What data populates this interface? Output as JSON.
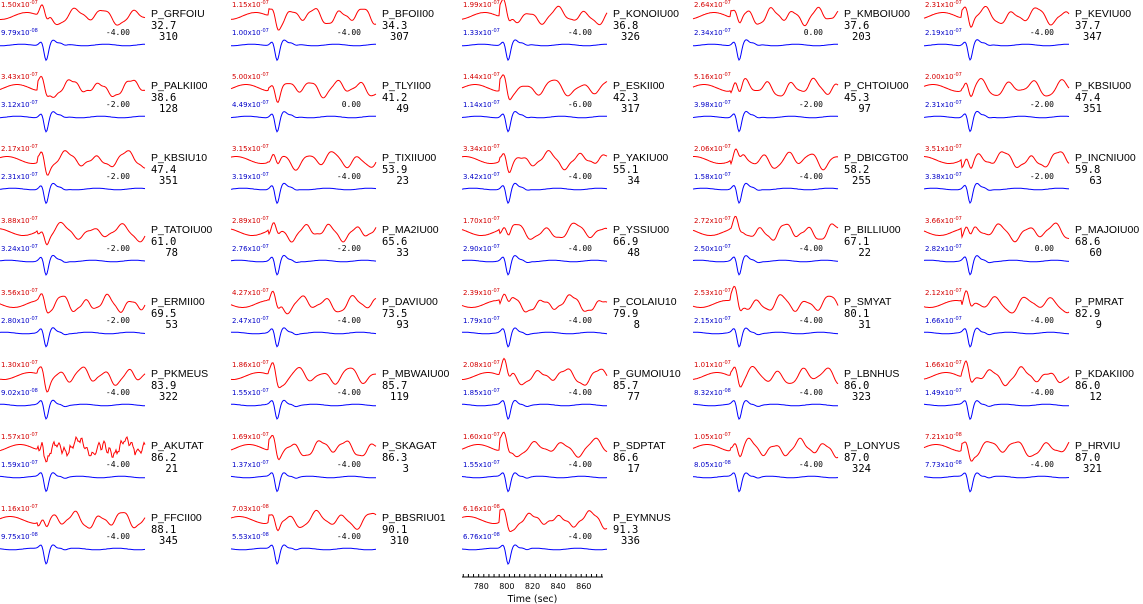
{
  "colors": {
    "data_trace": "#ff0000",
    "synthetic_trace": "#0000ff",
    "data_label": "#d40000",
    "synthetic_label": "#0000c8"
  },
  "chart_data": {
    "type": "line",
    "time_axis": {
      "label": "Time (sec)",
      "ticks": [
        "780",
        "800",
        "820",
        "840",
        "860"
      ],
      "range": [
        765,
        875
      ]
    },
    "panels": [
      {
        "station": "P_GRFOIU",
        "distance": "32.7",
        "azimuth": "310",
        "data_amp": "1.50x10",
        "data_exp": "-07",
        "syn_amp": "9.79x10",
        "syn_exp": "-08",
        "shift": "-4.00"
      },
      {
        "station": "P_BFOII00",
        "distance": "34.3",
        "azimuth": "307",
        "data_amp": "1.15x10",
        "data_exp": "-07",
        "syn_amp": "1.00x10",
        "syn_exp": "-07",
        "shift": "-4.00"
      },
      {
        "station": "P_KONOIU00",
        "distance": "36.8",
        "azimuth": "326",
        "data_amp": "1.99x10",
        "data_exp": "-07",
        "syn_amp": "1.33x10",
        "syn_exp": "-07",
        "shift": "-4.00"
      },
      {
        "station": "P_KMBOIU00",
        "distance": "37.6",
        "azimuth": "203",
        "data_amp": "2.64x10",
        "data_exp": "-07",
        "syn_amp": "2.34x10",
        "syn_exp": "-07",
        "shift": "0.00"
      },
      {
        "station": "P_KEVIU00",
        "distance": "37.7",
        "azimuth": "347",
        "data_amp": "2.31x10",
        "data_exp": "-07",
        "syn_amp": "2.19x10",
        "syn_exp": "-07",
        "shift": "-4.00"
      },
      {
        "station": "P_PALKII00",
        "distance": "38.6",
        "azimuth": "128",
        "data_amp": "3.43x10",
        "data_exp": "-07",
        "syn_amp": "3.12x10",
        "syn_exp": "-07",
        "shift": "-2.00"
      },
      {
        "station": "P_TLYII00",
        "distance": "41.2",
        "azimuth": "49",
        "data_amp": "5.00x10",
        "data_exp": "-07",
        "syn_amp": "4.49x10",
        "syn_exp": "-07",
        "shift": "0.00"
      },
      {
        "station": "P_ESKII00",
        "distance": "42.3",
        "azimuth": "317",
        "data_amp": "1.44x10",
        "data_exp": "-07",
        "syn_amp": "1.14x10",
        "syn_exp": "-07",
        "shift": "-6.00"
      },
      {
        "station": "P_CHTOIU00",
        "distance": "45.3",
        "azimuth": "97",
        "data_amp": "5.16x10",
        "data_exp": "-07",
        "syn_amp": "3.98x10",
        "syn_exp": "-07",
        "shift": "-2.00"
      },
      {
        "station": "P_KBSIU00",
        "distance": "47.4",
        "azimuth": "351",
        "data_amp": "2.00x10",
        "data_exp": "-07",
        "syn_amp": "2.31x10",
        "syn_exp": "-07",
        "shift": "-2.00"
      },
      {
        "station": "P_KBSIU10",
        "distance": "47.4",
        "azimuth": "351",
        "data_amp": "2.17x10",
        "data_exp": "-07",
        "syn_amp": "2.31x10",
        "syn_exp": "-07",
        "shift": "-2.00"
      },
      {
        "station": "P_TIXIIU00",
        "distance": "53.9",
        "azimuth": "23",
        "data_amp": "3.15x10",
        "data_exp": "-07",
        "syn_amp": "3.19x10",
        "syn_exp": "-07",
        "shift": "-4.00"
      },
      {
        "station": "P_YAKIU00",
        "distance": "55.1",
        "azimuth": "34",
        "data_amp": "3.34x10",
        "data_exp": "-07",
        "syn_amp": "3.42x10",
        "syn_exp": "-07",
        "shift": "-4.00"
      },
      {
        "station": "P_DBICGT00",
        "distance": "58.2",
        "azimuth": "255",
        "data_amp": "2.06x10",
        "data_exp": "-07",
        "syn_amp": "1.58x10",
        "syn_exp": "-07",
        "shift": "-4.00"
      },
      {
        "station": "P_INCNIU00",
        "distance": "59.8",
        "azimuth": "63",
        "data_amp": "3.51x10",
        "data_exp": "-07",
        "syn_amp": "3.38x10",
        "syn_exp": "-07",
        "shift": "-2.00"
      },
      {
        "station": "P_TATOIU00",
        "distance": "61.0",
        "azimuth": "78",
        "data_amp": "3.88x10",
        "data_exp": "-07",
        "syn_amp": "3.24x10",
        "syn_exp": "-07",
        "shift": "-2.00"
      },
      {
        "station": "P_MA2IU00",
        "distance": "65.6",
        "azimuth": "33",
        "data_amp": "2.89x10",
        "data_exp": "-07",
        "syn_amp": "2.76x10",
        "syn_exp": "-07",
        "shift": "-2.00"
      },
      {
        "station": "P_YSSIU00",
        "distance": "66.9",
        "azimuth": "48",
        "data_amp": "1.70x10",
        "data_exp": "-07",
        "syn_amp": "2.90x10",
        "syn_exp": "-07",
        "shift": "-4.00"
      },
      {
        "station": "P_BILLIU00",
        "distance": "67.1",
        "azimuth": "22",
        "data_amp": "2.72x10",
        "data_exp": "-07",
        "syn_amp": "2.50x10",
        "syn_exp": "-07",
        "shift": "-4.00"
      },
      {
        "station": "P_MAJOIU00",
        "distance": "68.6",
        "azimuth": "60",
        "data_amp": "3.66x10",
        "data_exp": "-07",
        "syn_amp": "2.82x10",
        "syn_exp": "-07",
        "shift": "0.00"
      },
      {
        "station": "P_ERMII00",
        "distance": "69.5",
        "azimuth": "53",
        "data_amp": "3.56x10",
        "data_exp": "-07",
        "syn_amp": "2.80x10",
        "syn_exp": "-07",
        "shift": "-2.00"
      },
      {
        "station": "P_DAVIU00",
        "distance": "73.5",
        "azimuth": "93",
        "data_amp": "4.27x10",
        "data_exp": "-07",
        "syn_amp": "2.47x10",
        "syn_exp": "-07",
        "shift": "-4.00"
      },
      {
        "station": "P_COLAIU10",
        "distance": "79.9",
        "azimuth": "8",
        "data_amp": "2.39x10",
        "data_exp": "-07",
        "syn_amp": "1.79x10",
        "syn_exp": "-07",
        "shift": "-4.00"
      },
      {
        "station": "P_SMYAT",
        "distance": "80.1",
        "azimuth": "31",
        "data_amp": "2.53x10",
        "data_exp": "-07",
        "syn_amp": "2.15x10",
        "syn_exp": "-07",
        "shift": "-4.00"
      },
      {
        "station": "P_PMRAT",
        "distance": "82.9",
        "azimuth": "9",
        "data_amp": "2.12x10",
        "data_exp": "-07",
        "syn_amp": "1.66x10",
        "syn_exp": "-07",
        "shift": "-4.00"
      },
      {
        "station": "P_PKMEUS",
        "distance": "83.9",
        "azimuth": "322",
        "data_amp": "1.30x10",
        "data_exp": "-07",
        "syn_amp": "9.02x10",
        "syn_exp": "-08",
        "shift": "-4.00"
      },
      {
        "station": "P_MBWAIU00",
        "distance": "85.7",
        "azimuth": "119",
        "data_amp": "1.86x10",
        "data_exp": "-07",
        "syn_amp": "1.55x10",
        "syn_exp": "-07",
        "shift": "-4.00"
      },
      {
        "station": "P_GUMOIU10",
        "distance": "85.7",
        "azimuth": "77",
        "data_amp": "2.08x10",
        "data_exp": "-07",
        "syn_amp": "1.85x10",
        "syn_exp": "-07",
        "shift": "-4.00"
      },
      {
        "station": "P_LBNHUS",
        "distance": "86.0",
        "azimuth": "323",
        "data_amp": "1.01x10",
        "data_exp": "-07",
        "syn_amp": "8.32x10",
        "syn_exp": "-08",
        "shift": "-4.00"
      },
      {
        "station": "P_KDAKII00",
        "distance": "86.0",
        "azimuth": "12",
        "data_amp": "1.66x10",
        "data_exp": "-07",
        "syn_amp": "1.49x10",
        "syn_exp": "-07",
        "shift": "-4.00"
      },
      {
        "station": "P_AKUTAT",
        "distance": "86.2",
        "azimuth": "21",
        "data_amp": "1.57x10",
        "data_exp": "-07",
        "syn_amp": "1.59x10",
        "syn_exp": "-07",
        "shift": "-4.00"
      },
      {
        "station": "P_SKAGAT",
        "distance": "86.3",
        "azimuth": "3",
        "data_amp": "1.69x10",
        "data_exp": "-07",
        "syn_amp": "1.37x10",
        "syn_exp": "-07",
        "shift": "-4.00"
      },
      {
        "station": "P_SDPTAT",
        "distance": "86.6",
        "azimuth": "17",
        "data_amp": "1.60x10",
        "data_exp": "-07",
        "syn_amp": "1.55x10",
        "syn_exp": "-07",
        "shift": "-4.00"
      },
      {
        "station": "P_LONYUS",
        "distance": "87.0",
        "azimuth": "324",
        "data_amp": "1.05x10",
        "data_exp": "-07",
        "syn_amp": "8.05x10",
        "syn_exp": "-08",
        "shift": "-4.00"
      },
      {
        "station": "P_HRVIU",
        "distance": "87.0",
        "azimuth": "321",
        "data_amp": "7.21x10",
        "data_exp": "-08",
        "syn_amp": "7.73x10",
        "syn_exp": "-08",
        "shift": "-4.00"
      },
      {
        "station": "P_FFCII00",
        "distance": "88.1",
        "azimuth": "345",
        "data_amp": "1.16x10",
        "data_exp": "-07",
        "syn_amp": "9.75x10",
        "syn_exp": "-08",
        "shift": "-4.00"
      },
      {
        "station": "P_BBSRIU01",
        "distance": "90.1",
        "azimuth": "310",
        "data_amp": "7.03x10",
        "data_exp": "-08",
        "syn_amp": "5.53x10",
        "syn_exp": "-08",
        "shift": "-4.00"
      },
      {
        "station": "P_EYMNUS",
        "distance": "91.3",
        "azimuth": "336",
        "data_amp": "6.16x10",
        "data_exp": "-08",
        "syn_amp": "6.76x10",
        "syn_exp": "-08",
        "shift": "-4.00"
      }
    ]
  }
}
